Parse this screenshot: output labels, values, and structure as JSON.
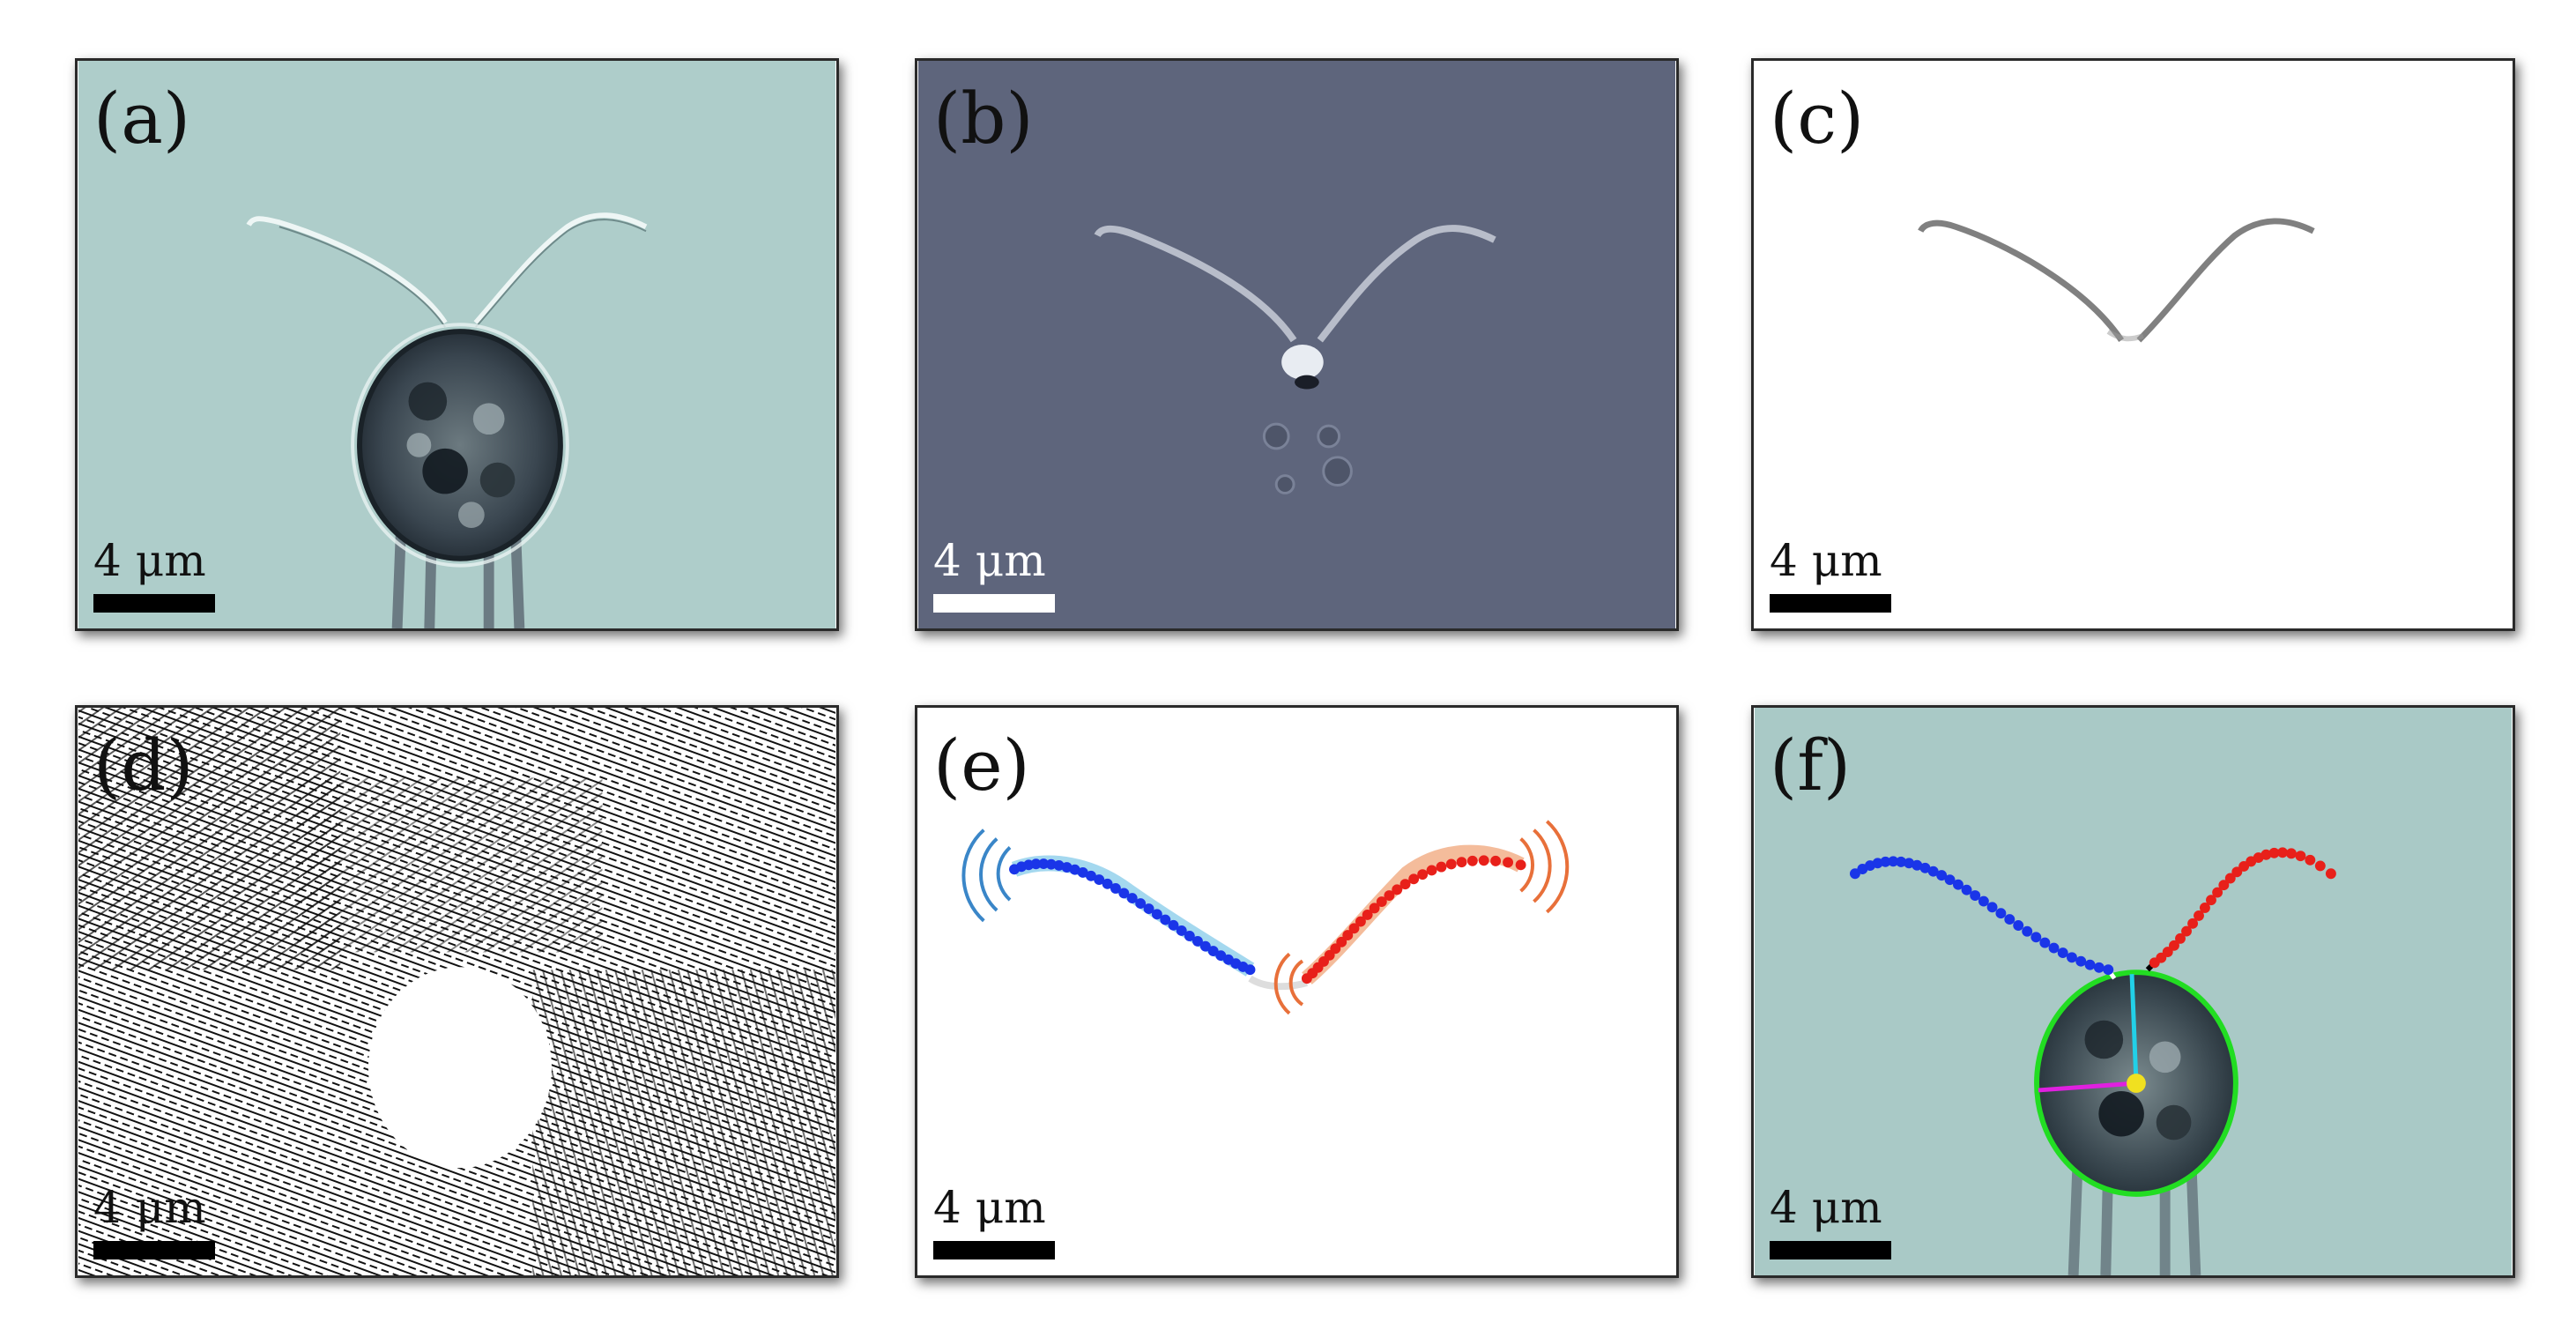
{
  "panels": [
    {
      "id": "a",
      "label": "(a)",
      "scale": "4 μm",
      "kind": "bright-field"
    },
    {
      "id": "b",
      "label": "(b)",
      "scale": "4 μm",
      "kind": "background-subtracted"
    },
    {
      "id": "c",
      "label": "(c)",
      "scale": "4 μm",
      "kind": "flagella-enhanced"
    },
    {
      "id": "d",
      "label": "(d)",
      "scale": "4 μm",
      "kind": "orientation-field"
    },
    {
      "id": "e",
      "label": "(e)",
      "scale": "4 μm",
      "kind": "tracked-flagella"
    },
    {
      "id": "f",
      "label": "(f)",
      "scale": "4 μm",
      "kind": "overlay"
    }
  ],
  "colors": {
    "teal_background": "#a9c9c6",
    "slate_background": "#5b6279",
    "left_flagellum": "#1a35e8",
    "right_flagellum": "#e8201a",
    "left_arc": "#3a86c8",
    "right_arc": "#e8703a",
    "cell_outline": "#22dd22",
    "centroid": "#f0e020",
    "axis_major": "#22d0e8",
    "axis_minor": "#e020e0"
  }
}
